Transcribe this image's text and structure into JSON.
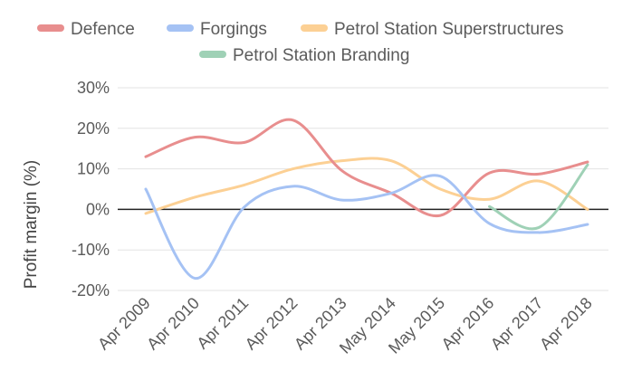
{
  "chart_data": {
    "type": "line",
    "title": "",
    "xlabel": "",
    "ylabel": "Profit margin (%)",
    "ylim": [
      -20,
      30
    ],
    "y_ticks": [
      {
        "value": 30,
        "label": "30%"
      },
      {
        "value": 20,
        "label": "20%"
      },
      {
        "value": 10,
        "label": "10%"
      },
      {
        "value": 0,
        "label": "0%"
      },
      {
        "value": -10,
        "label": "-10%"
      },
      {
        "value": -20,
        "label": "-20%"
      }
    ],
    "categories": [
      "Apr 2009",
      "Apr 2010",
      "Apr 2011",
      "Apr 2012",
      "Apr 2013",
      "May 2014",
      "May 2015",
      "Apr 2016",
      "Apr 2017",
      "Apr 2018"
    ],
    "grid": true,
    "legend_position": "top",
    "series": [
      {
        "name": "Defence",
        "color": "#e88e8e",
        "values": [
          13,
          17.8,
          16.5,
          22,
          9.5,
          4,
          -1.5,
          9,
          8.7,
          11.7
        ]
      },
      {
        "name": "Forgings",
        "color": "#a5c2f4",
        "values": [
          5,
          -17,
          0.5,
          5.7,
          2.3,
          4,
          8.2,
          -3.5,
          -5.7,
          -3.7
        ]
      },
      {
        "name": "Petrol Station Superstructures",
        "color": "#fcd094",
        "values": [
          -1,
          3,
          6,
          10,
          12,
          12,
          5,
          2.5,
          7,
          0
        ]
      },
      {
        "name": "Petrol Station Branding",
        "color": "#9fd1b6",
        "values": [
          null,
          null,
          null,
          null,
          null,
          null,
          null,
          0.7,
          -4.5,
          11
        ]
      }
    ]
  }
}
